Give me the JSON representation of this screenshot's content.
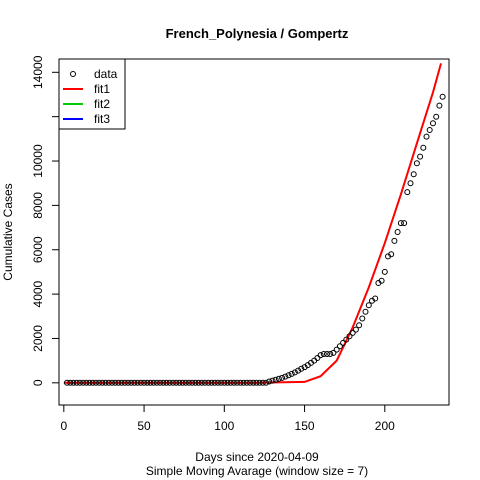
{
  "chart_data": {
    "type": "scatter",
    "title": "French_Polynesia / Gompertz",
    "xlabel": "Days since 2020-04-09",
    "subtitle": "Simple Moving Avarage (window size = 7)",
    "ylabel": "Cumulative Cases",
    "xlim": [
      -3,
      240
    ],
    "ylim": [
      -1000,
      14600
    ],
    "x_ticks": [
      0,
      50,
      100,
      150,
      200
    ],
    "y_ticks": [
      0,
      2000,
      4000,
      6000,
      8000,
      10000,
      12000,
      14000
    ],
    "y_tick_labels": [
      "0",
      "2000",
      "4000",
      "6000",
      "8000",
      "10000",
      "",
      "14000"
    ],
    "grid": false,
    "legend": {
      "position": "top-left",
      "entries": [
        {
          "name": "data",
          "symbol": "circle",
          "color": "#000000"
        },
        {
          "name": "fit1",
          "symbol": "line",
          "color": "#ff0000"
        },
        {
          "name": "fit2",
          "symbol": "line",
          "color": "#00cd00"
        },
        {
          "name": "fit3",
          "symbol": "line",
          "color": "#0000ff"
        }
      ]
    },
    "series": [
      {
        "name": "data",
        "kind": "points",
        "color": "#000000",
        "x": [
          2,
          4,
          6,
          8,
          10,
          12,
          14,
          16,
          18,
          20,
          22,
          24,
          26,
          28,
          30,
          32,
          34,
          36,
          38,
          40,
          42,
          44,
          46,
          48,
          50,
          52,
          54,
          56,
          58,
          60,
          62,
          64,
          66,
          68,
          70,
          72,
          74,
          76,
          78,
          80,
          82,
          84,
          86,
          88,
          90,
          92,
          94,
          96,
          98,
          100,
          102,
          104,
          106,
          108,
          110,
          112,
          114,
          116,
          118,
          120,
          122,
          124,
          126,
          128,
          130,
          132,
          134,
          136,
          138,
          140,
          142,
          144,
          146,
          148,
          150,
          152,
          154,
          156,
          158,
          160,
          162,
          164,
          166,
          168,
          170,
          172,
          174,
          176,
          178,
          180,
          182,
          184,
          186,
          188,
          190,
          192,
          194,
          196,
          198,
          200,
          202,
          204,
          206,
          208,
          210,
          212,
          214,
          216,
          218,
          220,
          222,
          224,
          226,
          228,
          230,
          232,
          234,
          236
        ],
        "y": [
          0,
          0,
          0,
          0,
          0,
          0,
          0,
          0,
          0,
          0,
          0,
          0,
          0,
          0,
          0,
          0,
          0,
          0,
          0,
          0,
          0,
          0,
          0,
          0,
          0,
          0,
          0,
          0,
          0,
          0,
          0,
          0,
          0,
          0,
          0,
          0,
          0,
          0,
          0,
          0,
          0,
          0,
          0,
          0,
          0,
          0,
          0,
          0,
          0,
          0,
          0,
          0,
          0,
          0,
          0,
          0,
          0,
          0,
          0,
          0,
          0,
          0,
          0,
          60,
          100,
          140,
          180,
          220,
          280,
          340,
          400,
          470,
          550,
          630,
          710,
          800,
          900,
          1000,
          1120,
          1250,
          1300,
          1300,
          1300,
          1350,
          1500,
          1650,
          1800,
          1950,
          2100,
          2250,
          2400,
          2600,
          2900,
          3200,
          3500,
          3700,
          3800,
          4500,
          4600,
          5000,
          5700,
          5800,
          6400,
          6800,
          7200,
          7200,
          8600,
          9000,
          9400,
          9900,
          10200,
          10600,
          11100,
          11400,
          11700,
          12000,
          12500,
          12900
        ]
      },
      {
        "name": "fit1",
        "kind": "line",
        "color": "#ff0000",
        "x": [
          0,
          60,
          120,
          150,
          160,
          170,
          180,
          190,
          200,
          210,
          220,
          230,
          235
        ],
        "y": [
          0,
          0,
          0,
          40,
          300,
          1000,
          2500,
          4300,
          6300,
          8500,
          10800,
          13100,
          14400
        ]
      }
    ]
  }
}
